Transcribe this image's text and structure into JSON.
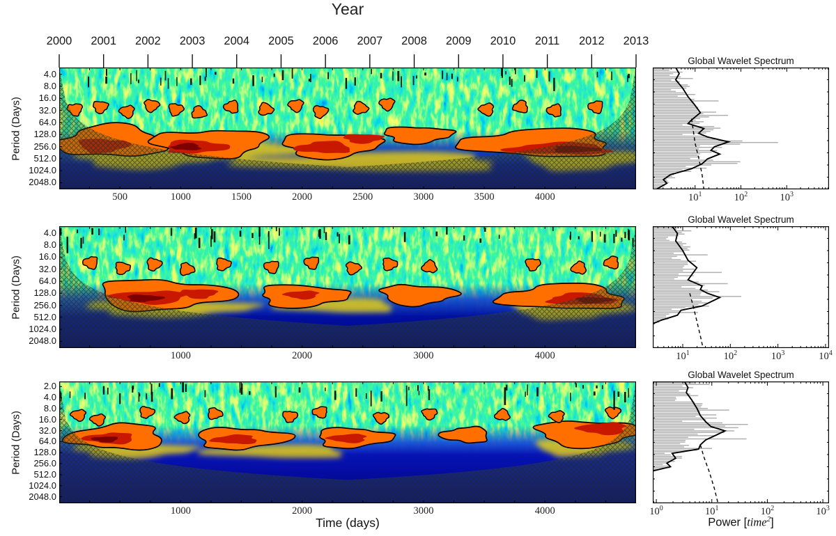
{
  "labels": {
    "year_title": "Year",
    "period_label": "Period (Days)",
    "time_label": "Time (days)",
    "gws_title": "Global Wavelet Spectrum",
    "power_label": {
      "prefix": "Power [",
      "math": "time",
      "sup": "2",
      "suffix": "]"
    }
  },
  "chart_data": [
    {
      "type": "heatmap",
      "name": "wavelet-power-spectrum-1",
      "title_top_axis": "Year",
      "year_ticks": [
        "2000",
        "2001",
        "2002",
        "2003",
        "2004",
        "2005",
        "2006",
        "2007",
        "2008",
        "2009",
        "2010",
        "2011",
        "2012",
        "2013"
      ],
      "x_range_days": [
        0,
        4750
      ],
      "day_ticks": [
        500,
        1000,
        1500,
        2000,
        2500,
        3000,
        3500,
        4000
      ],
      "period_ticks": [
        4.0,
        8.0,
        16.0,
        32.0,
        64.0,
        128.0,
        256.0,
        512.0,
        1024.0,
        2048.0
      ],
      "period_top": 2.7,
      "period_bottom": 3000,
      "coi_factor": 0.35,
      "speckle_seed": 3,
      "zones": [
        [
          0.52,
          "rgba(18,60,190,0)"
        ],
        [
          0.66,
          "rgba(18,60,190,0.9)"
        ],
        [
          0.8,
          "#0312a6"
        ],
        [
          1,
          "#000080"
        ]
      ],
      "yellow_regions": [
        {
          "d": 700,
          "p": 480,
          "rd": 600,
          "ro": 0.9
        },
        {
          "d": 2600,
          "p": 620,
          "rd": 1100,
          "ro": 0.8
        },
        {
          "d": 4300,
          "p": 520,
          "rd": 500,
          "ro": 0.9
        },
        {
          "d": 1500,
          "p": 300,
          "rd": 500,
          "ro": 0.8
        }
      ],
      "hot_regions": [
        {
          "d": 430,
          "p": 190,
          "rd": 430,
          "ro": 1.35,
          "s": 1
        },
        {
          "d": 1250,
          "p": 210,
          "rd": 470,
          "ro": 1.15,
          "s": 2
        },
        {
          "d": 2230,
          "p": 240,
          "rd": 400,
          "ro": 1.05,
          "s": 3
        },
        {
          "d": 3950,
          "p": 210,
          "rd": 620,
          "ro": 1.15,
          "s": 4
        },
        {
          "d": 2950,
          "p": 130,
          "rd": 280,
          "ro": 0.7,
          "s": 11
        }
      ],
      "cores": [
        {
          "d": 360,
          "p": 240,
          "rd": 210,
          "ro": 0.6,
          "s": 5
        },
        {
          "d": 1120,
          "p": 260,
          "rd": 260,
          "ro": 0.55,
          "s": 6
        },
        {
          "d": 2180,
          "p": 270,
          "rd": 230,
          "ro": 0.5,
          "s": 7
        },
        {
          "d": 4120,
          "p": 290,
          "rd": 430,
          "ro": 0.5,
          "s": 8
        },
        {
          "d": 2500,
          "p": 160,
          "rd": 160,
          "ro": 0.4,
          "s": 9
        }
      ],
      "dark_cores": [
        {
          "d": 1050,
          "p": 260,
          "rd": 120,
          "ro": 0.3,
          "s": 10
        },
        {
          "d": 4250,
          "p": 300,
          "rd": 200,
          "ro": 0.28,
          "s": 12
        }
      ],
      "upper_blobs": [
        {
          "d": 130,
          "p": 30
        },
        {
          "d": 340,
          "p": 26
        },
        {
          "d": 560,
          "p": 34
        },
        {
          "d": 760,
          "p": 24
        },
        {
          "d": 960,
          "p": 30
        },
        {
          "d": 1150,
          "p": 36
        },
        {
          "d": 1420,
          "p": 26
        },
        {
          "d": 1700,
          "p": 30
        },
        {
          "d": 1950,
          "p": 24
        },
        {
          "d": 2150,
          "p": 34
        },
        {
          "d": 2480,
          "p": 28
        },
        {
          "d": 2700,
          "p": 22
        },
        {
          "d": 3520,
          "p": 30
        },
        {
          "d": 3800,
          "p": 26
        },
        {
          "d": 4080,
          "p": 32
        },
        {
          "d": 4420,
          "p": 26
        }
      ],
      "gws": {
        "title": "Global Wavelet Spectrum",
        "xticks": [
          {
            "exp": "1",
            "f": 0.24
          },
          {
            "exp": "2",
            "f": 0.5
          },
          {
            "exp": "3",
            "f": 0.76
          }
        ],
        "decade_w": 0.26,
        "solid": [
          [
            0.13,
            0
          ],
          [
            0.15,
            0.05
          ],
          [
            0.13,
            0.1
          ],
          [
            0.17,
            0.17
          ],
          [
            0.2,
            0.24
          ],
          [
            0.24,
            0.31
          ],
          [
            0.27,
            0.37
          ],
          [
            0.22,
            0.43
          ],
          [
            0.2,
            0.46
          ],
          [
            0.29,
            0.5
          ],
          [
            0.26,
            0.54
          ],
          [
            0.31,
            0.57
          ],
          [
            0.43,
            0.61
          ],
          [
            0.35,
            0.65
          ],
          [
            0.33,
            0.68
          ],
          [
            0.38,
            0.71
          ],
          [
            0.31,
            0.75
          ],
          [
            0.28,
            0.79
          ],
          [
            0.22,
            0.83
          ],
          [
            0.1,
            0.88
          ],
          [
            0.06,
            0.92
          ],
          [
            0.08,
            0.95
          ],
          [
            0.02,
            1.0
          ]
        ],
        "dashed": [
          [
            0.22,
            0.42
          ],
          [
            0.23,
            0.52
          ],
          [
            0.24,
            0.62
          ],
          [
            0.26,
            0.74
          ],
          [
            0.28,
            0.88
          ],
          [
            0.29,
            1.0
          ]
        ],
        "spike_max_y": 1.0
      }
    },
    {
      "type": "heatmap",
      "name": "wavelet-power-spectrum-2",
      "x_range_days": [
        0,
        4750
      ],
      "day_ticks": [
        1000,
        2000,
        3000,
        4000
      ],
      "period_ticks": [
        4.0,
        8.0,
        16.0,
        32.0,
        64.0,
        128.0,
        256.0,
        512.0,
        1024.0,
        2048.0
      ],
      "period_top": 2.7,
      "period_bottom": 3000,
      "coi_factor": 0.35,
      "speckle_seed": 8,
      "zones": [
        [
          0.47,
          "rgba(20,70,205,0)"
        ],
        [
          0.6,
          "rgba(20,70,205,0.92)"
        ],
        [
          0.74,
          "#0110a0"
        ],
        [
          1,
          "#000080"
        ]
      ],
      "yellow_regions": [
        {
          "d": 900,
          "p": 300,
          "rd": 700,
          "ro": 0.7
        },
        {
          "d": 2300,
          "p": 260,
          "rd": 500,
          "ro": 0.6
        },
        {
          "d": 4200,
          "p": 320,
          "rd": 500,
          "ro": 0.8
        }
      ],
      "hot_regions": [
        {
          "d": 850,
          "p": 140,
          "rd": 560,
          "ro": 1.25,
          "s": 21
        },
        {
          "d": 2000,
          "p": 150,
          "rd": 360,
          "ro": 0.95,
          "s": 22
        },
        {
          "d": 2950,
          "p": 140,
          "rd": 310,
          "ro": 0.85,
          "s": 23
        },
        {
          "d": 4150,
          "p": 160,
          "rd": 520,
          "ro": 1.05,
          "s": 24
        }
      ],
      "cores": [
        {
          "d": 750,
          "p": 160,
          "rd": 310,
          "ro": 0.55,
          "s": 25
        },
        {
          "d": 1150,
          "p": 130,
          "rd": 150,
          "ro": 0.4,
          "s": 26
        },
        {
          "d": 4300,
          "p": 180,
          "rd": 280,
          "ro": 0.5,
          "s": 27
        },
        {
          "d": 2000,
          "p": 140,
          "rd": 140,
          "ro": 0.35,
          "s": 28
        }
      ],
      "dark_cores": [
        {
          "d": 700,
          "p": 170,
          "rd": 150,
          "ro": 0.3,
          "s": 29
        },
        {
          "d": 4400,
          "p": 190,
          "rd": 150,
          "ro": 0.26,
          "s": 30
        }
      ],
      "upper_blobs": [
        {
          "d": 260,
          "p": 22
        },
        {
          "d": 520,
          "p": 30
        },
        {
          "d": 780,
          "p": 24
        },
        {
          "d": 1050,
          "p": 32
        },
        {
          "d": 1350,
          "p": 24
        },
        {
          "d": 1750,
          "p": 28
        },
        {
          "d": 2080,
          "p": 22
        },
        {
          "d": 2420,
          "p": 30
        },
        {
          "d": 2720,
          "p": 24
        },
        {
          "d": 3050,
          "p": 28
        },
        {
          "d": 3900,
          "p": 24
        },
        {
          "d": 4280,
          "p": 30
        },
        {
          "d": 4550,
          "p": 22
        }
      ],
      "gws": {
        "title": "Global Wavelet Spectrum",
        "xticks": [
          {
            "exp": "1",
            "f": 0.17
          },
          {
            "exp": "2",
            "f": 0.44
          },
          {
            "exp": "3",
            "f": 0.71
          },
          {
            "exp": "4",
            "f": 0.98
          }
        ],
        "decade_w": 0.27,
        "solid": [
          [
            0.11,
            0
          ],
          [
            0.14,
            0.06
          ],
          [
            0.13,
            0.12
          ],
          [
            0.17,
            0.2
          ],
          [
            0.2,
            0.28
          ],
          [
            0.25,
            0.34
          ],
          [
            0.22,
            0.4
          ],
          [
            0.2,
            0.44
          ],
          [
            0.28,
            0.49
          ],
          [
            0.27,
            0.52
          ],
          [
            0.31,
            0.55
          ],
          [
            0.38,
            0.585
          ],
          [
            0.33,
            0.62
          ],
          [
            0.28,
            0.655
          ],
          [
            0.16,
            0.69
          ],
          [
            0.14,
            0.73
          ],
          [
            0.05,
            0.77
          ],
          [
            0.0,
            0.8
          ]
        ],
        "dashed": [
          [
            0.21,
            0.55
          ],
          [
            0.23,
            0.66
          ],
          [
            0.25,
            0.78
          ],
          [
            0.27,
            0.9
          ],
          [
            0.285,
            1.0
          ]
        ],
        "spike_max_y": 0.82
      }
    },
    {
      "type": "heatmap",
      "name": "wavelet-power-spectrum-3",
      "x_range_days": [
        0,
        4750
      ],
      "day_ticks": [
        1000,
        2000,
        3000,
        4000
      ],
      "period_ticks": [
        2.0,
        4.0,
        8.0,
        16.0,
        32.0,
        64.0,
        128.0,
        256.0,
        512.0,
        1024.0,
        2048.0
      ],
      "period_top": 1.45,
      "period_bottom": 3100,
      "coi_factor": 0.3,
      "speckle_seed": 15,
      "zones": [
        [
          0.36,
          "rgba(25,80,215,0)"
        ],
        [
          0.5,
          "rgba(25,80,215,0.95)"
        ],
        [
          0.6,
          "#0714b4"
        ],
        [
          1,
          "#000080"
        ]
      ],
      "yellow_regions": [
        {
          "d": 600,
          "p": 110,
          "rd": 500,
          "ro": 0.7
        },
        {
          "d": 1800,
          "p": 120,
          "rd": 600,
          "ro": 0.6
        },
        {
          "d": 4300,
          "p": 90,
          "rd": 400,
          "ro": 0.8
        }
      ],
      "hot_regions": [
        {
          "d": 480,
          "p": 48,
          "rd": 400,
          "ro": 1.15,
          "s": 41
        },
        {
          "d": 1500,
          "p": 52,
          "rd": 390,
          "ro": 0.95,
          "s": 42
        },
        {
          "d": 2420,
          "p": 50,
          "rd": 310,
          "ro": 0.9,
          "s": 43
        },
        {
          "d": 3350,
          "p": 42,
          "rd": 200,
          "ro": 0.7,
          "s": 44
        },
        {
          "d": 4350,
          "p": 38,
          "rd": 420,
          "ro": 1.2,
          "s": 45
        }
      ],
      "cores": [
        {
          "d": 420,
          "p": 52,
          "rd": 210,
          "ro": 0.5,
          "s": 46
        },
        {
          "d": 1450,
          "p": 56,
          "rd": 190,
          "ro": 0.42,
          "s": 47
        },
        {
          "d": 2380,
          "p": 52,
          "rd": 160,
          "ro": 0.4,
          "s": 48
        },
        {
          "d": 4480,
          "p": 28,
          "rd": 200,
          "ro": 0.55,
          "s": 49
        }
      ],
      "dark_cores": [
        {
          "d": 380,
          "p": 55,
          "rd": 110,
          "ro": 0.26,
          "s": 50
        }
      ],
      "upper_blobs": [
        {
          "d": 160,
          "p": 12
        },
        {
          "d": 320,
          "p": 16
        },
        {
          "d": 720,
          "p": 10
        },
        {
          "d": 1020,
          "p": 14
        },
        {
          "d": 1280,
          "p": 11
        },
        {
          "d": 1900,
          "p": 13
        },
        {
          "d": 2150,
          "p": 10
        },
        {
          "d": 2650,
          "p": 14
        },
        {
          "d": 3050,
          "p": 11
        },
        {
          "d": 3650,
          "p": 12
        },
        {
          "d": 4100,
          "p": 13
        },
        {
          "d": 4560,
          "p": 10
        }
      ],
      "gws": {
        "title": "Global Wavelet Spectrum",
        "xticks": [
          {
            "exp": "0",
            "f": 0.02
          },
          {
            "exp": "1",
            "f": 0.335
          },
          {
            "exp": "2",
            "f": 0.65
          },
          {
            "exp": "3",
            "f": 0.965
          }
        ],
        "decade_w": 0.315,
        "solid": [
          [
            0.18,
            0
          ],
          [
            0.2,
            0.05
          ],
          [
            0.19,
            0.09
          ],
          [
            0.22,
            0.15
          ],
          [
            0.25,
            0.22
          ],
          [
            0.27,
            0.28
          ],
          [
            0.3,
            0.33
          ],
          [
            0.33,
            0.37
          ],
          [
            0.41,
            0.405
          ],
          [
            0.36,
            0.44
          ],
          [
            0.3,
            0.48
          ],
          [
            0.27,
            0.52
          ],
          [
            0.26,
            0.555
          ],
          [
            0.11,
            0.59
          ],
          [
            0.13,
            0.63
          ],
          [
            0.08,
            0.67
          ],
          [
            0.1,
            0.7
          ],
          [
            0.0,
            0.735
          ]
        ],
        "dashed": [
          [
            0.27,
            0.52
          ],
          [
            0.29,
            0.62
          ],
          [
            0.32,
            0.74
          ],
          [
            0.35,
            0.88
          ],
          [
            0.37,
            1.0
          ]
        ],
        "spike_max_y": 0.75
      }
    }
  ],
  "style_colors": {
    "hot_orange": "#ff6f00",
    "core_red": "#c81800",
    "dark_red": "#7d0000",
    "yellow": "#ffe000",
    "navy": "#000080",
    "contour": "#000000",
    "gws_spike_gray": "#b0b0b0"
  }
}
